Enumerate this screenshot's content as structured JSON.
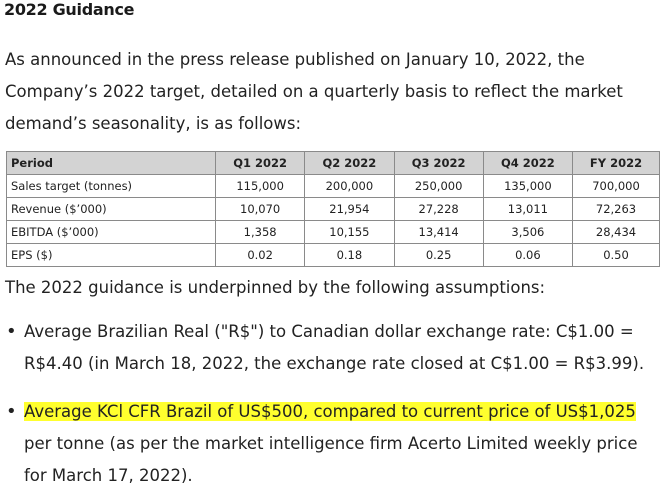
{
  "heading": "2022 Guidance",
  "intro": "As announced in the press release published on January 10, 2022, the Company’s 2022 target, detailed on a quarterly basis to reflect the market demand’s seasonality, is as follows:",
  "table": {
    "headers": [
      "Period",
      "Q1 2022",
      "Q2 2022",
      "Q3 2022",
      "Q4 2022",
      "FY 2022"
    ],
    "rows": [
      [
        "Sales target (tonnes)",
        "115,000",
        "200,000",
        "250,000",
        "135,000",
        "700,000"
      ],
      [
        "Revenue ($’000)",
        "10,070",
        "21,954",
        "27,228",
        "13,011",
        "72,263"
      ],
      [
        "EBITDA ($’000)",
        "1,358",
        "10,155",
        "13,414",
        "3,506",
        "28,434"
      ],
      [
        "EPS ($)",
        "0.02",
        "0.18",
        "0.25",
        "0.06",
        "0.50"
      ]
    ]
  },
  "assumptions_intro": "The 2022 guidance is underpinned by the following assumptions:",
  "bullets": {
    "b1": "Average Brazilian Real (\"R$\") to Canadian dollar exchange rate: C$1.00 = R$4.40 (in March 18, 2022, the exchange rate closed at C$1.00 = R$3.99).",
    "b2_highlight": "Average KCl CFR Brazil of US$500, compared to current price of US$1,025",
    "b2_rest": " per tonne (as per the market intelligence firm Acerto Limited weekly price for March 17, 2022)."
  },
  "colors": {
    "highlight": "#ffff2e",
    "table_header_bg": "#d3d3d3"
  }
}
